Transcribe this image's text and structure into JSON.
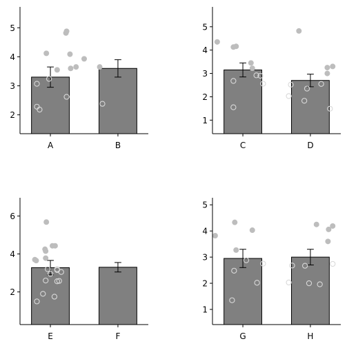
{
  "colors": {
    "bar": "#808080",
    "dot_filled": "#bdbdbd",
    "dot_open": "#d9d9d9",
    "axis": "#000000"
  },
  "chart_data": [
    {
      "type": "bar",
      "categories": [
        "A",
        "B"
      ],
      "values": [
        3.3,
        3.6
      ],
      "errors": [
        0.35,
        0.3
      ],
      "ylim": [
        1.35,
        5.72
      ],
      "yticks": [
        "2",
        "3",
        "4",
        "5"
      ],
      "points": [
        [
          {
            "x": 0.24,
            "y": 4.88,
            "open": false
          },
          {
            "x": 0.1,
            "y": 3.55,
            "open": false
          },
          {
            "x": 0.3,
            "y": 3.6,
            "open": false
          },
          {
            "x": 0.38,
            "y": 3.65,
            "open": false
          },
          {
            "x": -0.2,
            "y": 3.07,
            "open": true
          },
          {
            "x": -0.2,
            "y": 2.28,
            "open": true
          },
          {
            "x": -0.16,
            "y": 2.18,
            "open": true
          }
        ],
        [
          {
            "x": 0.23,
            "y": 4.82,
            "open": false
          },
          {
            "x": -0.06,
            "y": 4.12,
            "open": false
          },
          {
            "x": 0.29,
            "y": 4.09,
            "open": false
          },
          {
            "x": 0.5,
            "y": 3.93,
            "open": false
          },
          {
            "x": 0.73,
            "y": 3.65,
            "open": false
          },
          {
            "x": -0.02,
            "y": 3.24,
            "open": true
          },
          {
            "x": 0.24,
            "y": 2.62,
            "open": true
          },
          {
            "x": 0.77,
            "y": 2.38,
            "open": true
          }
        ]
      ]
    },
    {
      "type": "bar",
      "categories": [
        "C",
        "D"
      ],
      "values": [
        3.15,
        2.7
      ],
      "errors": [
        0.3,
        0.27
      ],
      "ylim": [
        0.42,
        5.85
      ],
      "yticks": [
        "1",
        "2",
        "3",
        "4",
        "5"
      ],
      "points": [
        [
          {
            "x": -0.38,
            "y": 4.35,
            "open": false
          },
          {
            "x": -0.14,
            "y": 4.13,
            "open": false
          },
          {
            "x": -0.1,
            "y": 4.16,
            "open": false
          },
          {
            "x": 0.12,
            "y": 3.45,
            "open": false
          },
          {
            "x": 0.14,
            "y": 3.22,
            "open": false
          },
          {
            "x": 0.2,
            "y": 2.92,
            "open": true
          },
          {
            "x": 0.26,
            "y": 2.9,
            "open": true
          },
          {
            "x": -0.14,
            "y": 2.68,
            "open": true
          },
          {
            "x": 0.3,
            "y": 2.56,
            "open": true
          },
          {
            "x": -0.14,
            "y": 1.55,
            "open": true
          }
        ],
        [
          {
            "x": 0.83,
            "y": 4.82,
            "open": false
          },
          {
            "x": 1.25,
            "y": 3.25,
            "open": false
          },
          {
            "x": 1.33,
            "y": 3.3,
            "open": false
          },
          {
            "x": 1.25,
            "y": 3.0,
            "open": false
          },
          {
            "x": 0.71,
            "y": 2.52,
            "open": true
          },
          {
            "x": 1.16,
            "y": 2.55,
            "open": true
          },
          {
            "x": 0.95,
            "y": 2.35,
            "open": true
          },
          {
            "x": 0.68,
            "y": 2.03,
            "open": true
          },
          {
            "x": 0.91,
            "y": 1.83,
            "open": true
          },
          {
            "x": 1.29,
            "y": 1.49,
            "open": true
          }
        ]
      ]
    },
    {
      "type": "bar",
      "categories": [
        "E",
        "F"
      ],
      "values": [
        3.28,
        3.3
      ],
      "errors": [
        0.38,
        0.25
      ],
      "ylim": [
        0.28,
        6.96
      ],
      "yticks": [
        "2",
        "4",
        "6"
      ],
      "points": [
        [
          {
            "x": -0.06,
            "y": 5.68,
            "open": false
          },
          {
            "x": 0.03,
            "y": 4.43,
            "open": false
          },
          {
            "x": -0.08,
            "y": 4.25,
            "open": false
          },
          {
            "x": -0.04,
            "y": 3.2,
            "open": true
          },
          {
            "x": 0.16,
            "y": 3.05,
            "open": true
          },
          {
            "x": -0.07,
            "y": 2.6,
            "open": true
          },
          {
            "x": 0.1,
            "y": 2.56,
            "open": true
          },
          {
            "x": 0.13,
            "y": 2.58,
            "open": true
          },
          {
            "x": -0.2,
            "y": 1.5,
            "open": true
          }
        ],
        [
          {
            "x": 0.07,
            "y": 4.43,
            "open": false
          },
          {
            "x": -0.07,
            "y": 4.15,
            "open": false
          },
          {
            "x": -0.23,
            "y": 3.7,
            "open": false
          },
          {
            "x": -0.21,
            "y": 3.65,
            "open": false
          },
          {
            "x": -0.07,
            "y": 3.78,
            "open": false
          },
          {
            "x": 0.1,
            "y": 3.15,
            "open": true
          },
          {
            "x": 0.0,
            "y": 2.95,
            "open": true
          },
          {
            "x": 0.1,
            "y": 3.2,
            "open": true
          },
          {
            "x": -0.11,
            "y": 1.9,
            "open": true
          },
          {
            "x": 0.06,
            "y": 1.75,
            "open": true
          }
        ]
      ]
    },
    {
      "type": "bar",
      "categories": [
        "G",
        "H"
      ],
      "values": [
        2.95,
        3.0
      ],
      "errors": [
        0.35,
        0.3
      ],
      "ylim": [
        0.42,
        5.27
      ],
      "yticks": [
        "1",
        "2",
        "3",
        "4",
        "5"
      ],
      "points": [
        [
          {
            "x": -0.41,
            "y": 3.82,
            "open": false
          },
          {
            "x": -0.12,
            "y": 4.33,
            "open": false
          },
          {
            "x": -0.1,
            "y": 3.27,
            "open": false
          },
          {
            "x": 0.14,
            "y": 4.03,
            "open": false
          },
          {
            "x": -0.13,
            "y": 2.48,
            "open": true
          },
          {
            "x": 0.05,
            "y": 2.88,
            "open": true
          },
          {
            "x": 0.3,
            "y": 2.75,
            "open": true
          },
          {
            "x": 0.21,
            "y": 2.02,
            "open": true
          },
          {
            "x": -0.16,
            "y": 1.35,
            "open": true
          }
        ],
        [
          {
            "x": 1.09,
            "y": 4.25,
            "open": false
          },
          {
            "x": 1.33,
            "y": 4.19,
            "open": false
          },
          {
            "x": 1.27,
            "y": 4.06,
            "open": false
          },
          {
            "x": 1.26,
            "y": 3.6,
            "open": false
          },
          {
            "x": 1.33,
            "y": 2.74,
            "open": true
          },
          {
            "x": 0.73,
            "y": 2.68,
            "open": true
          },
          {
            "x": 0.92,
            "y": 2.67,
            "open": true
          },
          {
            "x": 0.68,
            "y": 2.03,
            "open": true
          },
          {
            "x": 0.98,
            "y": 2.0,
            "open": true
          },
          {
            "x": 1.14,
            "y": 1.96,
            "open": true
          }
        ]
      ]
    }
  ]
}
